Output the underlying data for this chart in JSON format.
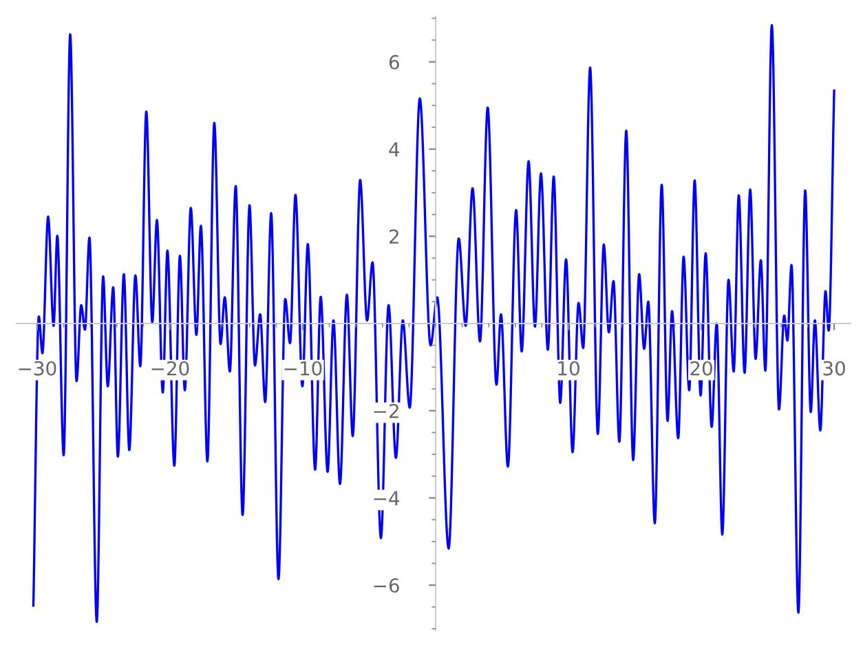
{
  "chart_data": {
    "type": "line",
    "x": [
      -30.28,
      -29.87,
      -29.6,
      -29.17,
      -28.76,
      -28.48,
      -28.0,
      -27.51,
      -27.03,
      -26.68,
      -26.4,
      -26.06,
      -25.51,
      -25.03,
      -24.68,
      -24.27,
      -23.92,
      -23.47,
      -23.06,
      -22.6,
      -22.23,
      -21.78,
      -21.33,
      -20.98,
      -20.54,
      -20.19,
      -19.67,
      -19.25,
      -18.88,
      -18.43,
      -18.01,
      -17.67,
      -17.18,
      -16.66,
      -16.19,
      -15.87,
      -15.49,
      -15.05,
      -14.53,
      -14.01,
      -13.6,
      -13.21,
      -12.83,
      -12.38,
      -11.83,
      -11.32,
      -10.96,
      -10.55,
      -10.03,
      -9.62,
      -9.07,
      -8.65,
      -8.13,
      -7.69,
      -7.2,
      -6.68,
      -6.24,
      -5.68,
      -5.16,
      -4.75,
      -4.12,
      -3.54,
      -2.99,
      -2.47,
      -1.95,
      -1.19,
      -0.38,
      0.12,
      0.98,
      1.74,
      2.26,
      2.78,
      3.34,
      3.92,
      4.58,
      4.92,
      5.44,
      6.06,
      6.48,
      7.0,
      7.48,
      7.93,
      8.45,
      8.89,
      9.38,
      9.82,
      10.31,
      10.76,
      11.11,
      11.63,
      12.21,
      12.66,
      13.04,
      13.39,
      13.83,
      14.35,
      14.87,
      15.32,
      15.7,
      16.01,
      16.5,
      17.02,
      17.46,
      17.8,
      18.26,
      18.67,
      19.09,
      19.5,
      19.95,
      20.33,
      20.78,
      21.16,
      21.58,
      22.05,
      22.44,
      22.82,
      23.26,
      23.68,
      24.09,
      24.48,
      24.82,
      25.31,
      25.85,
      26.24,
      26.48,
      26.79,
      27.31,
      27.82,
      28.24,
      28.55,
      28.96,
      29.35,
      29.59,
      30.0
    ],
    "series": [
      {
        "color": "#0000ff",
        "values": [
          -6.47,
          0.16,
          -0.68,
          2.45,
          -0.05,
          2.01,
          -3.02,
          6.63,
          -1.32,
          0.42,
          -0.14,
          1.97,
          -6.84,
          1.08,
          -1.44,
          0.83,
          -3.05,
          1.13,
          -2.9,
          1.1,
          -0.98,
          4.86,
          0.03,
          2.37,
          -1.58,
          1.67,
          -3.26,
          1.55,
          -1.53,
          2.65,
          -0.26,
          2.24,
          -3.16,
          4.6,
          -0.47,
          0.6,
          -1.1,
          3.15,
          -4.39,
          2.71,
          -0.96,
          0.21,
          -1.8,
          2.53,
          -5.86,
          0.56,
          -0.45,
          2.95,
          -1.44,
          1.82,
          -3.35,
          0.61,
          -3.4,
          0.07,
          -3.68,
          0.66,
          -2.58,
          3.29,
          0.07,
          1.4,
          -4.92,
          0.42,
          -3.08,
          0.07,
          -1.93,
          5.16,
          -0.5,
          0.6,
          -5.16,
          1.95,
          -0.05,
          3.1,
          -0.41,
          4.95,
          -1.4,
          0.21,
          -3.28,
          2.6,
          -0.64,
          3.72,
          -0.07,
          3.44,
          -0.6,
          3.37,
          -1.82,
          1.47,
          -2.95,
          0.47,
          -0.56,
          5.87,
          -2.53,
          1.81,
          -0.2,
          0.97,
          -2.71,
          4.42,
          -3.13,
          1.13,
          -0.58,
          0.5,
          -4.58,
          3.18,
          -2.23,
          0.28,
          -2.63,
          1.53,
          -1.53,
          3.28,
          -1.65,
          1.61,
          -2.37,
          0.0,
          -4.84,
          1.0,
          -1.1,
          2.94,
          -1.13,
          3.07,
          -0.81,
          1.45,
          -1.08,
          6.84,
          -1.97,
          0.18,
          -0.39,
          1.34,
          -6.63,
          3.05,
          -2.03,
          0.07,
          -2.45,
          0.74,
          -0.16,
          5.34
        ]
      }
    ],
    "xlim": [
      -31.55,
      31.24
    ],
    "ylim": [
      -7.04,
      7.04
    ],
    "xticks": [
      {
        "value": -30,
        "label": "−30"
      },
      {
        "value": -20,
        "label": "−20"
      },
      {
        "value": -10,
        "label": "−10"
      },
      10,
      20,
      30
    ],
    "yticks": [
      {
        "value": -6,
        "label": "−6"
      },
      {
        "value": -4,
        "label": "−4"
      },
      {
        "value": -2,
        "label": "−2"
      },
      2,
      4,
      6
    ],
    "grid": false,
    "marker": "none",
    "line_style": "solid"
  }
}
